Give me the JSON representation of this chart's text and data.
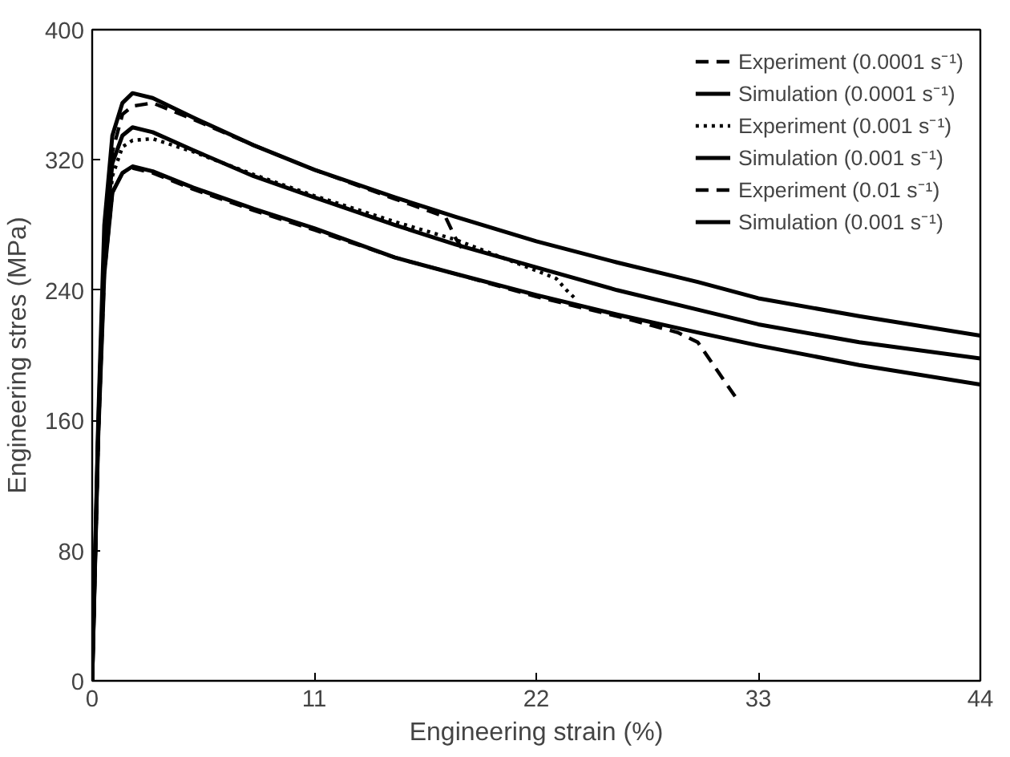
{
  "chart_data": {
    "type": "line",
    "xlabel": "Engineering strain (%)",
    "ylabel": "Engineering stres (MPa)",
    "xlim": [
      0,
      44
    ],
    "ylim": [
      0,
      400
    ],
    "xticks": [
      0,
      11,
      22,
      33,
      44
    ],
    "yticks": [
      0,
      80,
      160,
      240,
      320,
      400
    ],
    "grid": false,
    "legend": "top right",
    "marker": "none",
    "series": [
      {
        "name": "Experiment (0.0001 s⁻¹)",
        "color": "#000000",
        "line_style": "dashed",
        "x": [
          0,
          0.3,
          0.6,
          1,
          1.5,
          2,
          3,
          5,
          8,
          11,
          15,
          18,
          22,
          26,
          29,
          30,
          31,
          32
        ],
        "values": [
          0,
          150,
          250,
          300,
          312,
          315,
          312,
          302,
          289,
          277,
          260,
          250,
          236,
          224,
          214,
          208,
          190,
          172
        ]
      },
      {
        "name": "Simulation (0.0001 s⁻¹)",
        "color": "#000000",
        "line_style": "solid",
        "x": [
          0,
          0.3,
          0.6,
          1,
          1.5,
          2,
          3,
          5,
          8,
          11,
          15,
          18,
          22,
          26,
          30,
          33,
          38,
          44
        ],
        "values": [
          0,
          150,
          250,
          300,
          312,
          316,
          313,
          303,
          290,
          278,
          260,
          250,
          237,
          225,
          214,
          206,
          194,
          182
        ]
      },
      {
        "name": "Experiment (0.001 s⁻¹)",
        "color": "#000000",
        "line_style": "dotted",
        "x": [
          0,
          0.3,
          0.6,
          1,
          1.5,
          2,
          3,
          5,
          8,
          11,
          15,
          18,
          22,
          23,
          23.5,
          24
        ],
        "values": [
          0,
          150,
          255,
          310,
          328,
          332,
          333,
          325,
          311,
          298,
          282,
          271,
          252,
          247,
          240,
          234
        ]
      },
      {
        "name": "Simulation (0.001 s⁻¹)",
        "color": "#000000",
        "line_style": "solid",
        "x": [
          0,
          0.3,
          0.6,
          1,
          1.5,
          2,
          3,
          5,
          8,
          11,
          15,
          18,
          22,
          26,
          30,
          33,
          38,
          44
        ],
        "values": [
          0,
          155,
          265,
          318,
          335,
          340,
          337,
          326,
          310,
          297,
          280,
          268,
          254,
          240,
          228,
          219,
          208,
          198
        ]
      },
      {
        "name": "Experiment (0.01 s⁻¹)",
        "color": "#000000",
        "line_style": "dashed",
        "x": [
          0,
          0.3,
          0.6,
          1,
          1.5,
          2,
          3,
          5,
          8,
          11,
          15,
          17.5,
          18,
          18.5
        ],
        "values": [
          0,
          155,
          270,
          325,
          348,
          353,
          355,
          345,
          329,
          314,
          296,
          285,
          272,
          262
        ]
      },
      {
        "name": "Simulation (0.001 s⁻¹)",
        "color": "#000000",
        "line_style": "solid",
        "x": [
          0,
          0.3,
          0.6,
          1,
          1.5,
          2,
          3,
          5,
          8,
          11,
          15,
          18,
          22,
          26,
          30,
          33,
          38,
          44
        ],
        "values": [
          0,
          160,
          280,
          335,
          355,
          361,
          358,
          346,
          329,
          314,
          297,
          285,
          270,
          257,
          245,
          235,
          224,
          212
        ]
      }
    ]
  }
}
